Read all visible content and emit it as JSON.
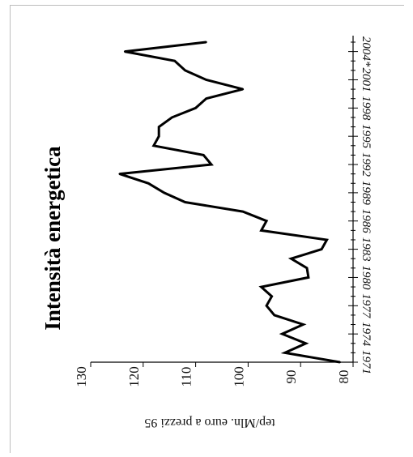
{
  "chart_data": {
    "type": "line",
    "title": "Intensità energetica",
    "ylabel": "tep/Mln. euro a prezzi 95",
    "xlabel": "",
    "orientation": "rotated-90-clockwise",
    "ylim": [
      80,
      130
    ],
    "y_ticks": [
      "80",
      "90",
      "100",
      "110",
      "120",
      "130"
    ],
    "x_tick_labels": [
      {
        "label": "1971",
        "year": 1971
      },
      {
        "label": "1974",
        "year": 1974
      },
      {
        "label": "1977",
        "year": 1977
      },
      {
        "label": "1980",
        "year": 1980
      },
      {
        "label": "1983",
        "year": 1983
      },
      {
        "label": "1986",
        "year": 1986
      },
      {
        "label": "1989",
        "year": 1989
      },
      {
        "label": "1992",
        "year": 1992
      },
      {
        "label": "1995",
        "year": 1995
      },
      {
        "label": "1998",
        "year": 1998
      },
      {
        "label": "2001",
        "year": 2001
      },
      {
        "label": "2004*",
        "year": 2004
      }
    ],
    "grid": false,
    "series": [
      {
        "color": "#000000",
        "points": [
          {
            "year": 1971,
            "value": 82.5
          },
          {
            "year": 1972,
            "value": 93
          },
          {
            "year": 1973,
            "value": 89
          },
          {
            "year": 1974,
            "value": 93.5
          },
          {
            "year": 1975,
            "value": 89.5
          },
          {
            "year": 1976,
            "value": 95
          },
          {
            "year": 1977,
            "value": 96.5
          },
          {
            "year": 1978,
            "value": 95.5
          },
          {
            "year": 1979,
            "value": 97.5
          },
          {
            "year": 1980,
            "value": 88.5
          },
          {
            "year": 1981,
            "value": 88.8
          },
          {
            "year": 1982,
            "value": 91.8
          },
          {
            "year": 1983,
            "value": 86
          },
          {
            "year": 1984,
            "value": 85
          },
          {
            "year": 1985,
            "value": 97.5
          },
          {
            "year": 1986,
            "value": 96.5
          },
          {
            "year": 1987,
            "value": 101
          },
          {
            "year": 1988,
            "value": 112
          },
          {
            "year": 1989,
            "value": 116
          },
          {
            "year": 1990,
            "value": 119
          },
          {
            "year": 1991,
            "value": 124.5
          },
          {
            "year": 1992,
            "value": 107
          },
          {
            "year": 1993,
            "value": 108.5
          },
          {
            "year": 1994,
            "value": 118
          },
          {
            "year": 1995,
            "value": 117
          },
          {
            "year": 1996,
            "value": 117
          },
          {
            "year": 1997,
            "value": 114.5
          },
          {
            "year": 1998,
            "value": 110
          },
          {
            "year": 1999,
            "value": 108
          },
          {
            "year": 2000,
            "value": 101
          },
          {
            "year": 2001,
            "value": 108
          },
          {
            "year": 2002,
            "value": 112
          },
          {
            "year": 2003,
            "value": 114
          },
          {
            "year": 2004,
            "value": 123.5
          },
          {
            "year": 2005,
            "value": 108
          }
        ]
      }
    ]
  }
}
